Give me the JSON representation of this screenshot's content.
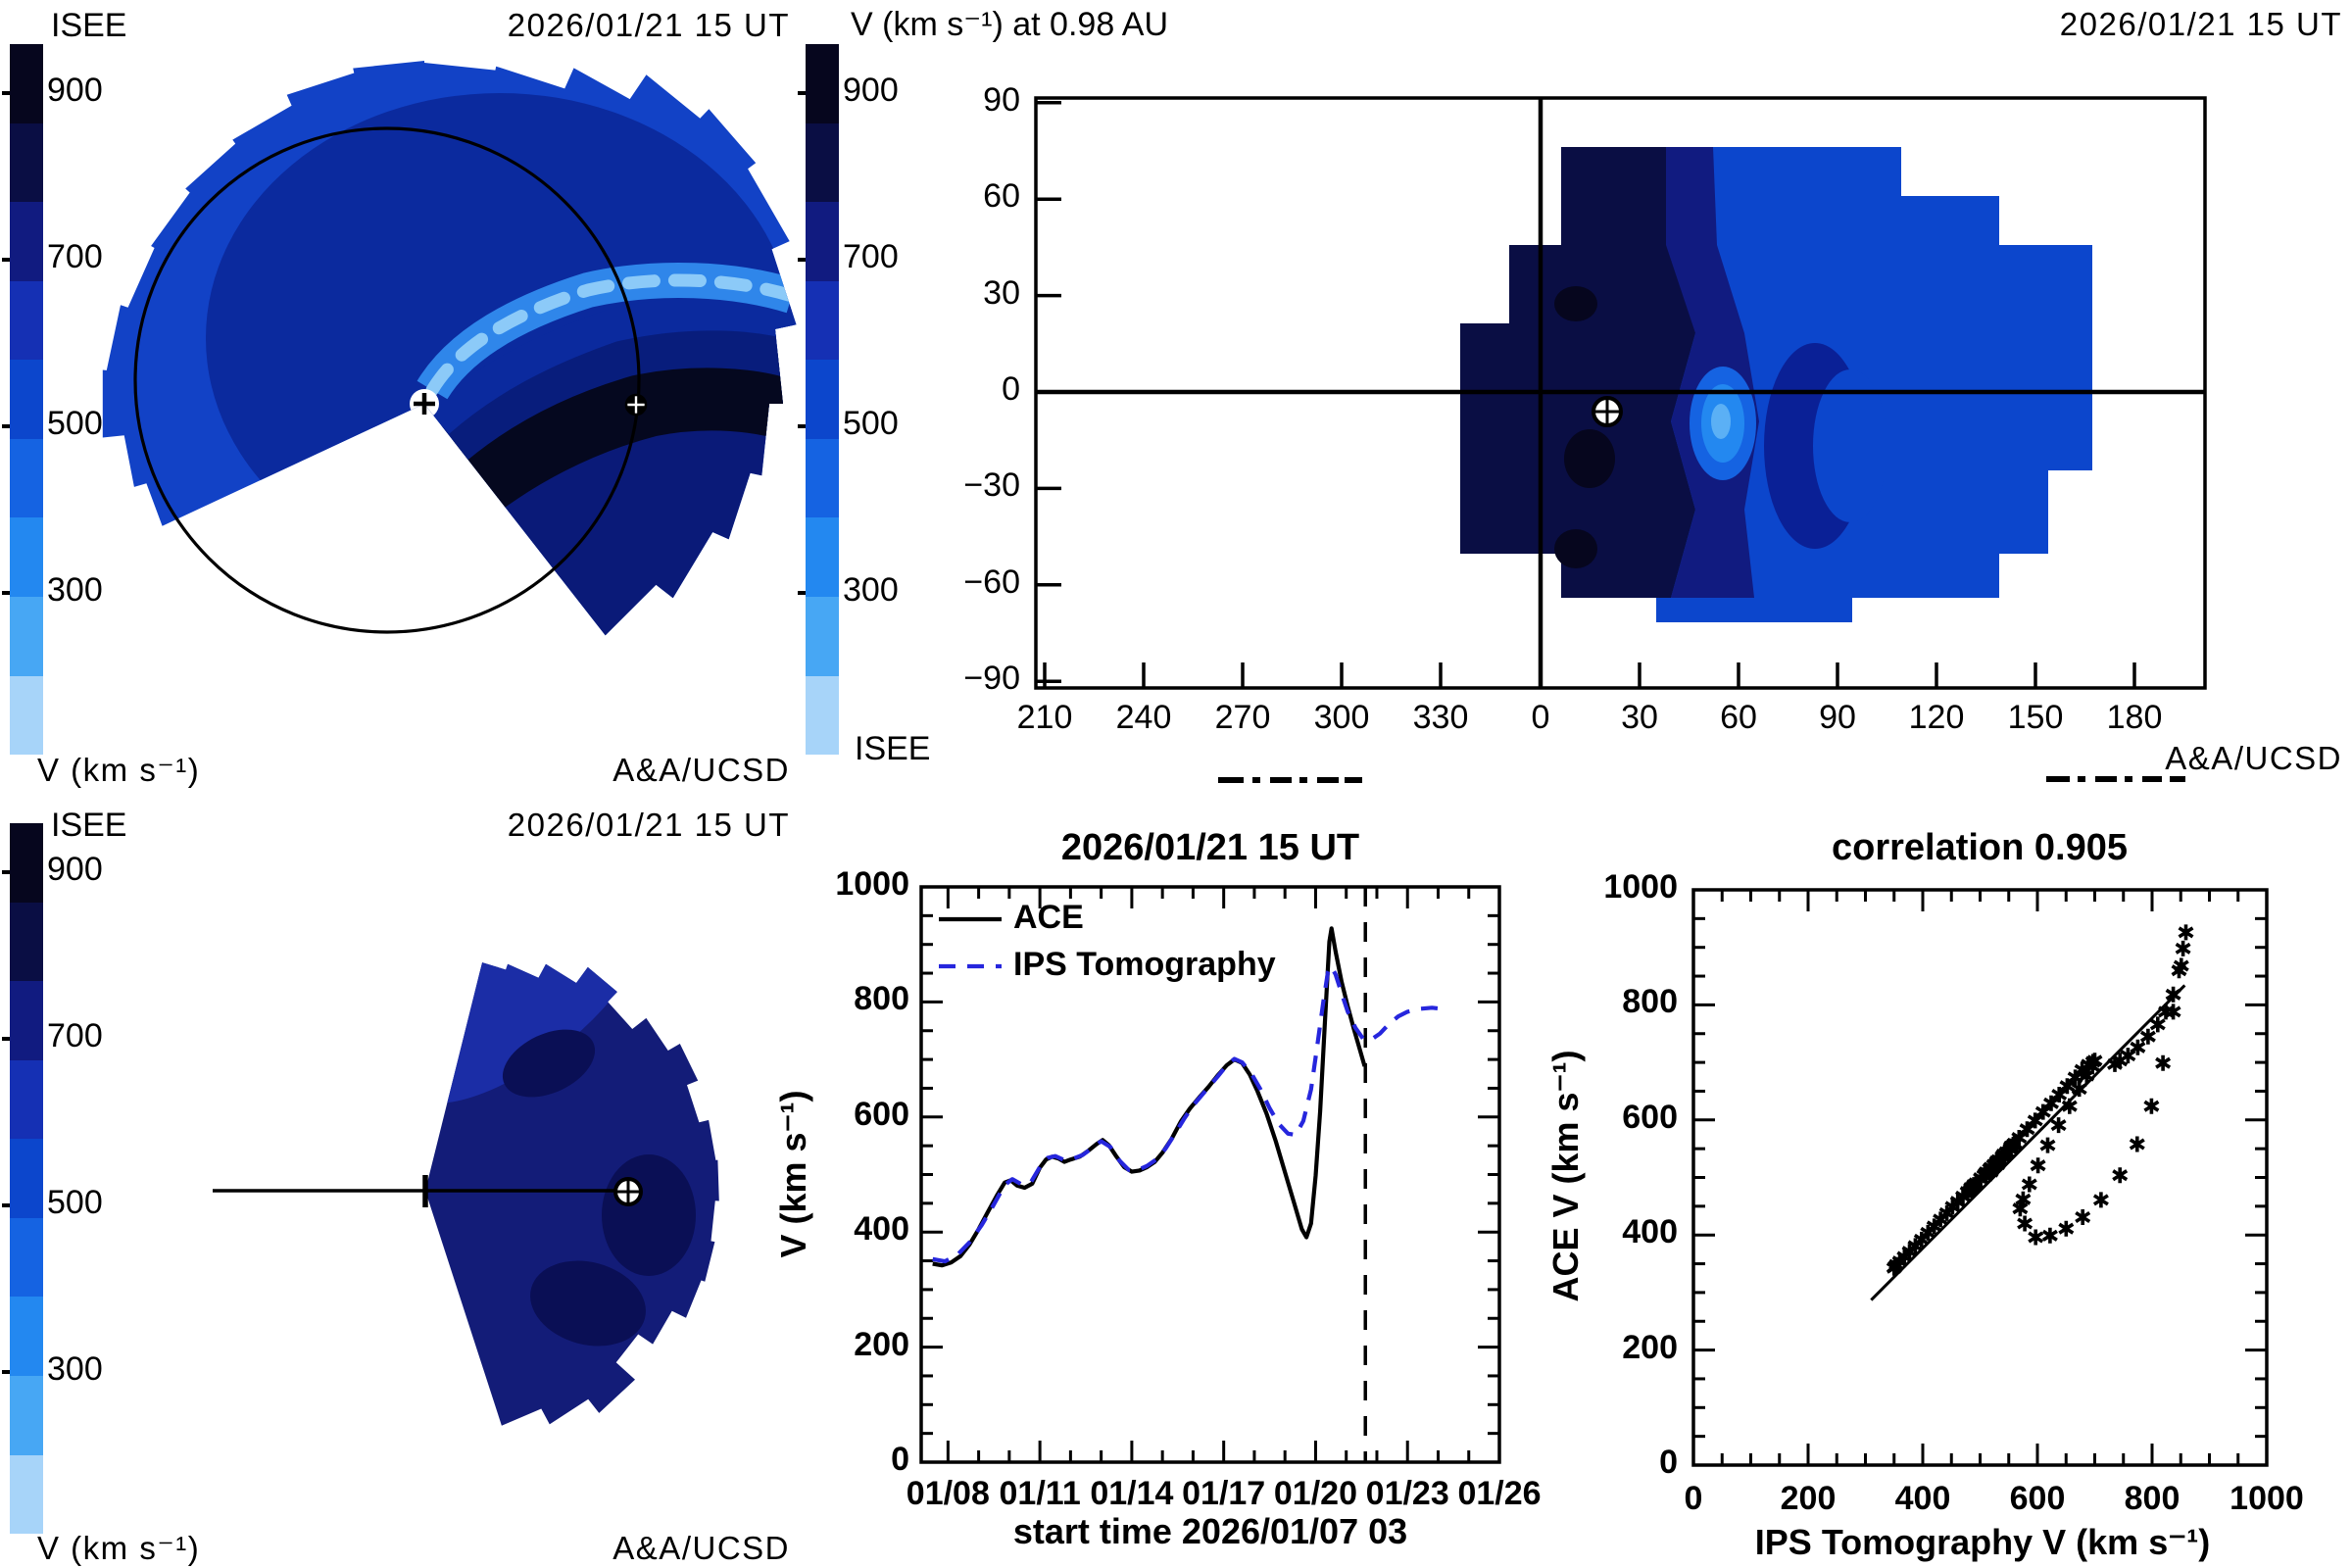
{
  "colors": {
    "background": "#ffffff",
    "axis": "#000000",
    "ips_tomography_line": "#2626dd",
    "ace_line": "#000000",
    "fan_outer_blue": "#1242c6",
    "fan_mid_navy": "#0b2a9e",
    "fan_dark_navy": "#0a1a78",
    "fan_core_dark": "#05081f",
    "stream_light_band": "#2f86ea",
    "stream_dash": "#8ccaf8",
    "map_main_blue": "#0c46cc",
    "map_dark": "#0a0e44",
    "map_mid": "#111b80",
    "map_darkest_spot": "#06061e",
    "map_bright_spot": "#2388f0",
    "map_bright_core": "#5bb0f5",
    "mer_fan_base": "#131c78",
    "mer_fan_band": "#1b2da6",
    "mer_fan_patch": "#0a0f55"
  },
  "velocity_colorbar": {
    "tick_labels": [
      "900",
      "700",
      "500",
      "300"
    ],
    "title": "V (km s⁻¹)",
    "bins": [
      {
        "range": "above 900",
        "color": "#06061e"
      },
      {
        "range": "800-900",
        "color": "#0a0e44"
      },
      {
        "range": "700-800",
        "color": "#111b80"
      },
      {
        "range": "600-700",
        "color": "#1530b4"
      },
      {
        "range": "500-600",
        "color": "#0c46cc"
      },
      {
        "range": "400-500",
        "color": "#1563e2"
      },
      {
        "range": "300-400",
        "color": "#2388f0"
      },
      {
        "range": "200-300",
        "color": "#47a7f4"
      },
      {
        "range": "below 200",
        "color": "#a7d4f9"
      }
    ]
  },
  "panels": {
    "ecliptic": {
      "source": "ISEE",
      "datetime": "2026/01/21 15 UT",
      "colorbar_title": "V (km s⁻¹)",
      "credit": "A&A/UCSD"
    },
    "skymap": {
      "title": "V (km s⁻¹) at 0.98 AU",
      "datetime": "2026/01/21 15 UT",
      "source": "ISEE",
      "credit": "A&A/UCSD",
      "lat_tick_labels": [
        "90",
        "60",
        "30",
        "0",
        "−30",
        "−60",
        "−90"
      ],
      "lat_tick_values": [
        90,
        60,
        30,
        0,
        -30,
        -60,
        -90
      ],
      "lon_tick_labels": [
        "210",
        "240",
        "270",
        "300",
        "330",
        "0",
        "30",
        "60",
        "90",
        "120",
        "150",
        "180"
      ]
    },
    "meridional": {
      "source": "ISEE",
      "datetime": "2026/01/21 15 UT",
      "colorbar_title": "V (km s⁻¹)",
      "credit": "A&A/UCSD"
    },
    "timeseries": {
      "title": "2026/01/21 15 UT",
      "legend": [
        {
          "label": "ACE",
          "style": "solid",
          "color": "#000000"
        },
        {
          "label": "IPS Tomography",
          "style": "dashed",
          "color": "#2626dd"
        }
      ],
      "ylabel": "V (km s⁻¹)",
      "xlabel": "start time 2026/01/07 03",
      "y_tick_labels": [
        "0",
        "200",
        "400",
        "600",
        "800",
        "1000"
      ],
      "x_tick_labels": [
        "01/08",
        "01/11",
        "01/14",
        "01/17",
        "01/20",
        "01/23",
        "01/26"
      ]
    },
    "scatter": {
      "title": "correlation 0.905",
      "ylabel": "ACE V (km s⁻¹)",
      "xlabel": "IPS Tomography V (km s⁻¹)",
      "x_tick_labels": [
        "0",
        "200",
        "400",
        "600",
        "800",
        "1000"
      ],
      "y_tick_labels": [
        "0",
        "200",
        "400",
        "600",
        "800",
        "1000"
      ]
    }
  },
  "chart_data": [
    {
      "type": "line",
      "title": "2026/01/21 15 UT",
      "xlabel": "start time 2026/01/07 03",
      "ylabel": "V (km s⁻¹)",
      "x_unit": "day of 2026 January (decimal)",
      "xlim": [
        7.125,
        26.0
      ],
      "ylim": [
        0,
        1000
      ],
      "x_ticks": [
        8,
        11,
        14,
        17,
        20,
        23,
        26
      ],
      "y_ticks": [
        0,
        200,
        400,
        600,
        800,
        1000
      ],
      "forecast_marker_day": 21.625,
      "series": [
        {
          "name": "ACE",
          "color": "#000000",
          "style": "solid",
          "points": [
            [
              7.5,
              345
            ],
            [
              7.8,
              342
            ],
            [
              8.1,
              347
            ],
            [
              8.4,
              358
            ],
            [
              8.7,
              378
            ],
            [
              9.0,
              405
            ],
            [
              9.3,
              435
            ],
            [
              9.6,
              464
            ],
            [
              9.85,
              486
            ],
            [
              10.05,
              490
            ],
            [
              10.25,
              481
            ],
            [
              10.5,
              477
            ],
            [
              10.75,
              484
            ],
            [
              11.0,
              512
            ],
            [
              11.2,
              526
            ],
            [
              11.4,
              531
            ],
            [
              11.6,
              528
            ],
            [
              11.8,
              522
            ],
            [
              12.0,
              526
            ],
            [
              12.3,
              531
            ],
            [
              12.6,
              542
            ],
            [
              12.85,
              553
            ],
            [
              13.05,
              560
            ],
            [
              13.25,
              551
            ],
            [
              13.5,
              531
            ],
            [
              13.75,
              513
            ],
            [
              14.0,
              505
            ],
            [
              14.25,
              507
            ],
            [
              14.5,
              513
            ],
            [
              14.75,
              522
            ],
            [
              15.0,
              538
            ],
            [
              15.3,
              562
            ],
            [
              15.6,
              592
            ],
            [
              15.9,
              615
            ],
            [
              16.2,
              634
            ],
            [
              16.5,
              652
            ],
            [
              16.8,
              672
            ],
            [
              17.1,
              690
            ],
            [
              17.35,
              700
            ],
            [
              17.6,
              694
            ],
            [
              17.85,
              674
            ],
            [
              18.1,
              645
            ],
            [
              18.4,
              606
            ],
            [
              18.7,
              558
            ],
            [
              19.0,
              504
            ],
            [
              19.3,
              450
            ],
            [
              19.55,
              405
            ],
            [
              19.7,
              391
            ],
            [
              19.85,
              415
            ],
            [
              20.0,
              498
            ],
            [
              20.15,
              610
            ],
            [
              20.3,
              760
            ],
            [
              20.45,
              905
            ],
            [
              20.52,
              928
            ],
            [
              20.65,
              888
            ],
            [
              20.85,
              835
            ],
            [
              21.05,
              792
            ],
            [
              21.25,
              753
            ],
            [
              21.45,
              716
            ],
            [
              21.6,
              688
            ]
          ]
        },
        {
          "name": "IPS Tomography",
          "color": "#2626dd",
          "style": "dashed",
          "points": [
            [
              7.5,
              353
            ],
            [
              7.9,
              349
            ],
            [
              8.3,
              360
            ],
            [
              8.7,
              382
            ],
            [
              9.1,
              412
            ],
            [
              9.5,
              448
            ],
            [
              9.85,
              482
            ],
            [
              10.1,
              492
            ],
            [
              10.4,
              483
            ],
            [
              10.7,
              486
            ],
            [
              11.0,
              513
            ],
            [
              11.25,
              529
            ],
            [
              11.5,
              532
            ],
            [
              11.8,
              525
            ],
            [
              12.1,
              528
            ],
            [
              12.4,
              534
            ],
            [
              12.7,
              546
            ],
            [
              13.0,
              558
            ],
            [
              13.3,
              548
            ],
            [
              13.6,
              524
            ],
            [
              13.9,
              508
            ],
            [
              14.2,
              508
            ],
            [
              14.5,
              515
            ],
            [
              14.8,
              526
            ],
            [
              15.1,
              545
            ],
            [
              15.4,
              570
            ],
            [
              15.7,
              596
            ],
            [
              16.0,
              620
            ],
            [
              16.4,
              645
            ],
            [
              16.8,
              670
            ],
            [
              17.1,
              690
            ],
            [
              17.35,
              701
            ],
            [
              17.6,
              695
            ],
            [
              17.9,
              676
            ],
            [
              18.2,
              648
            ],
            [
              18.5,
              615
            ],
            [
              18.8,
              588
            ],
            [
              19.1,
              571
            ],
            [
              19.35,
              569
            ],
            [
              19.6,
              593
            ],
            [
              19.85,
              648
            ],
            [
              20.05,
              722
            ],
            [
              20.25,
              800
            ],
            [
              20.4,
              852
            ],
            [
              20.5,
              862
            ],
            [
              20.65,
              848
            ],
            [
              20.85,
              815
            ],
            [
              21.05,
              783
            ],
            [
              21.3,
              755
            ],
            [
              21.55,
              736
            ],
            [
              21.8,
              734
            ],
            [
              22.1,
              745
            ],
            [
              22.4,
              762
            ],
            [
              22.7,
              775
            ],
            [
              23.0,
              783
            ],
            [
              23.4,
              788
            ],
            [
              23.8,
              790
            ],
            [
              24.1,
              788
            ]
          ]
        }
      ]
    },
    {
      "type": "scatter",
      "title": "correlation 0.905",
      "correlation": 0.905,
      "xlabel": "IPS Tomography V (km s⁻¹)",
      "ylabel": "ACE V (km s⁻¹)",
      "xlim": [
        0,
        1000
      ],
      "ylim": [
        0,
        1000
      ],
      "x_ticks": [
        0,
        200,
        400,
        600,
        800,
        1000
      ],
      "y_ticks": [
        0,
        200,
        400,
        600,
        800,
        1000
      ],
      "fit_line": {
        "x1": 310,
        "y1": 287,
        "x2": 857,
        "y2": 834
      },
      "points": [
        [
          352,
          345
        ],
        [
          350,
          343
        ],
        [
          354,
          348
        ],
        [
          360,
          354
        ],
        [
          368,
          362
        ],
        [
          377,
          371
        ],
        [
          387,
          381
        ],
        [
          398,
          392
        ],
        [
          409,
          404
        ],
        [
          420,
          415
        ],
        [
          431,
          427
        ],
        [
          442,
          438
        ],
        [
          452,
          449
        ],
        [
          461,
          458
        ],
        [
          470,
          467
        ],
        [
          478,
          475
        ],
        [
          484,
          482
        ],
        [
          489,
          487
        ],
        [
          486,
          481
        ],
        [
          483,
          478
        ],
        [
          487,
          483
        ],
        [
          493,
          490
        ],
        [
          501,
          499
        ],
        [
          509,
          507
        ],
        [
          517,
          515
        ],
        [
          524,
          522
        ],
        [
          529,
          527
        ],
        [
          532,
          530
        ],
        [
          530,
          526
        ],
        [
          527,
          523
        ],
        [
          529,
          525
        ],
        [
          533,
          530
        ],
        [
          539,
          537
        ],
        [
          546,
          544
        ],
        [
          553,
          551
        ],
        [
          558,
          557
        ],
        [
          560,
          559
        ],
        [
          553,
          549
        ],
        [
          543,
          537
        ],
        [
          531,
          523
        ],
        [
          519,
          510
        ],
        [
          510,
          503
        ],
        [
          507,
          504
        ],
        [
          511,
          509
        ],
        [
          519,
          517
        ],
        [
          529,
          528
        ],
        [
          541,
          540
        ],
        [
          554,
          554
        ],
        [
          568,
          569
        ],
        [
          582,
          584
        ],
        [
          596,
          599
        ],
        [
          610,
          614
        ],
        [
          624,
          629
        ],
        [
          638,
          644
        ],
        [
          652,
          659
        ],
        [
          666,
          674
        ],
        [
          678,
          687
        ],
        [
          689,
          696
        ],
        [
          697,
          701
        ],
        [
          700,
          703
        ],
        [
          696,
          693
        ],
        [
          686,
          677
        ],
        [
          673,
          654
        ],
        [
          656,
          624
        ],
        [
          637,
          591
        ],
        [
          618,
          556
        ],
        [
          601,
          521
        ],
        [
          586,
          488
        ],
        [
          575,
          462
        ],
        [
          570,
          446
        ],
        [
          578,
          420
        ],
        [
          597,
          396
        ],
        [
          622,
          399
        ],
        [
          650,
          411
        ],
        [
          679,
          431
        ],
        [
          711,
          461
        ],
        [
          744,
          504
        ],
        [
          774,
          558
        ],
        [
          799,
          624
        ],
        [
          819,
          699
        ],
        [
          837,
          788
        ],
        [
          851,
          868
        ],
        [
          859,
          926
        ],
        [
          854,
          898
        ],
        [
          847,
          860
        ],
        [
          837,
          818
        ],
        [
          824,
          788
        ],
        [
          810,
          766
        ],
        [
          793,
          745
        ],
        [
          775,
          726
        ],
        [
          758,
          712
        ],
        [
          744,
          703
        ],
        [
          735,
          697
        ]
      ]
    }
  ]
}
